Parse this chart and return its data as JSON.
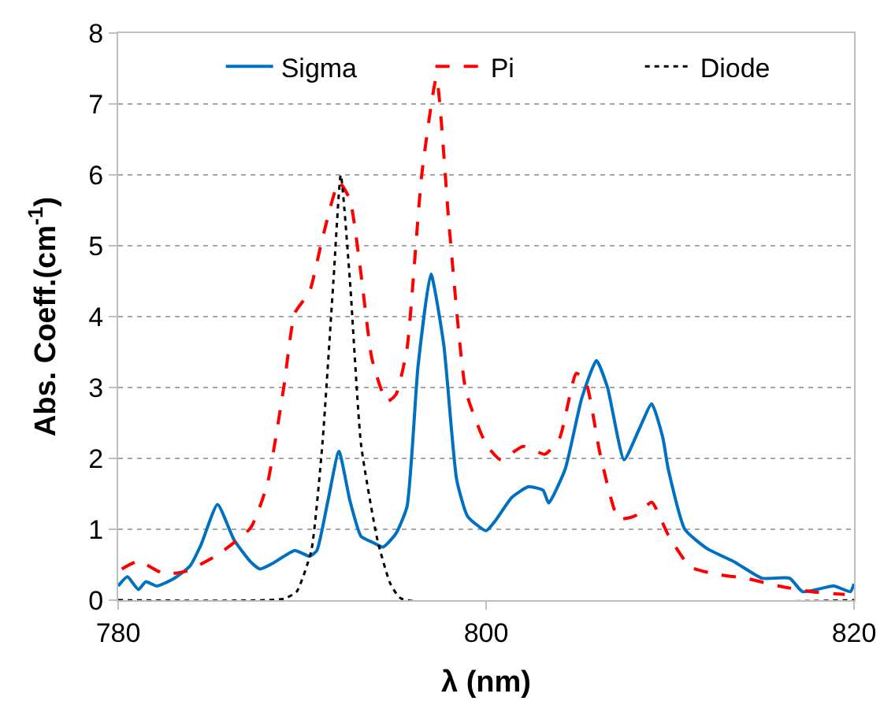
{
  "chart_data": {
    "type": "line",
    "xlabel": "λ (nm)",
    "ylabel": "Abs. Coeff.(cm$^{-1}$)",
    "xlim": [
      780,
      820
    ],
    "xticks": [
      780,
      800,
      820
    ],
    "ylim": [
      0,
      8
    ],
    "yticks": [
      0,
      1,
      2,
      3,
      4,
      5,
      6,
      7,
      8
    ],
    "grid": "y",
    "legend": "top right",
    "series": [
      {
        "name": "Sigma",
        "color": "#0070c0",
        "line_style": "solid",
        "x": [
          780,
          780.5,
          781.1,
          781.5,
          782.1,
          783,
          783.9,
          784.5,
          785.4,
          786.3,
          787.2,
          787.7,
          788.4,
          789.6,
          790.4,
          790.8,
          791.4,
          792.0,
          792.6,
          793.2,
          793.8,
          794.4,
          795.1,
          795.7,
          796.3,
          797.0,
          797.7,
          798.4,
          799.0,
          800.0,
          800.5,
          801.4,
          802.3,
          803.1,
          803.4,
          804.3,
          805.2,
          806.0,
          806.6,
          807.5,
          808.3,
          809.0,
          809.6,
          809.9,
          810.8,
          812.0,
          813.5,
          815.0,
          816.5,
          817.2,
          818.9,
          819.8,
          820
        ],
        "values": [
          0.2,
          0.33,
          0.15,
          0.26,
          0.2,
          0.3,
          0.48,
          0.78,
          1.35,
          0.85,
          0.54,
          0.44,
          0.52,
          0.7,
          0.62,
          0.7,
          1.4,
          2.1,
          1.4,
          0.9,
          0.82,
          0.75,
          0.94,
          1.32,
          3.3,
          4.6,
          3.6,
          1.7,
          1.18,
          0.98,
          1.12,
          1.45,
          1.6,
          1.55,
          1.37,
          1.85,
          2.85,
          3.38,
          3.0,
          1.98,
          2.4,
          2.77,
          2.3,
          1.85,
          1.0,
          0.73,
          0.54,
          0.31,
          0.31,
          0.12,
          0.2,
          0.12,
          0.23
        ]
      },
      {
        "name": "Pi",
        "color": "#ff0000",
        "line_style": "dashed",
        "x": [
          780.2,
          781.1,
          782.5,
          783.7,
          785.4,
          787.2,
          788.1,
          789.0,
          789.6,
          790.4,
          791.1,
          792.0,
          792.6,
          793.2,
          793.8,
          794.6,
          795.1,
          795.7,
          796.5,
          797.3,
          798.0,
          798.9,
          800.0,
          800.8,
          802.0,
          803.2,
          804.0,
          804.9,
          805.4,
          806.2,
          807.2,
          808.1,
          809.0,
          809.9,
          811.1,
          812.6,
          814.1,
          815.9,
          817.7,
          819.5
        ],
        "values": [
          0.44,
          0.55,
          0.37,
          0.41,
          0.64,
          1.02,
          1.63,
          3.0,
          4.05,
          4.35,
          5.1,
          5.9,
          5.65,
          4.6,
          3.4,
          2.8,
          2.9,
          3.55,
          6.0,
          7.37,
          5.25,
          2.95,
          2.2,
          1.98,
          2.17,
          2.06,
          2.29,
          3.2,
          3.1,
          2.06,
          1.15,
          1.19,
          1.38,
          0.92,
          0.47,
          0.36,
          0.31,
          0.2,
          0.12,
          0.08
        ]
      },
      {
        "name": "Diode",
        "color": "#000000",
        "line_style": "dotted",
        "x": [
          780,
          789,
          789.7,
          790.5,
          791.1,
          791.7,
          792.1,
          792.6,
          793.2,
          794.1,
          794.8,
          795.4,
          820
        ],
        "values": [
          0,
          0.02,
          0.12,
          0.7,
          2.2,
          4.5,
          6.0,
          4.5,
          2.2,
          0.84,
          0.23,
          0.02,
          0
        ]
      }
    ]
  }
}
